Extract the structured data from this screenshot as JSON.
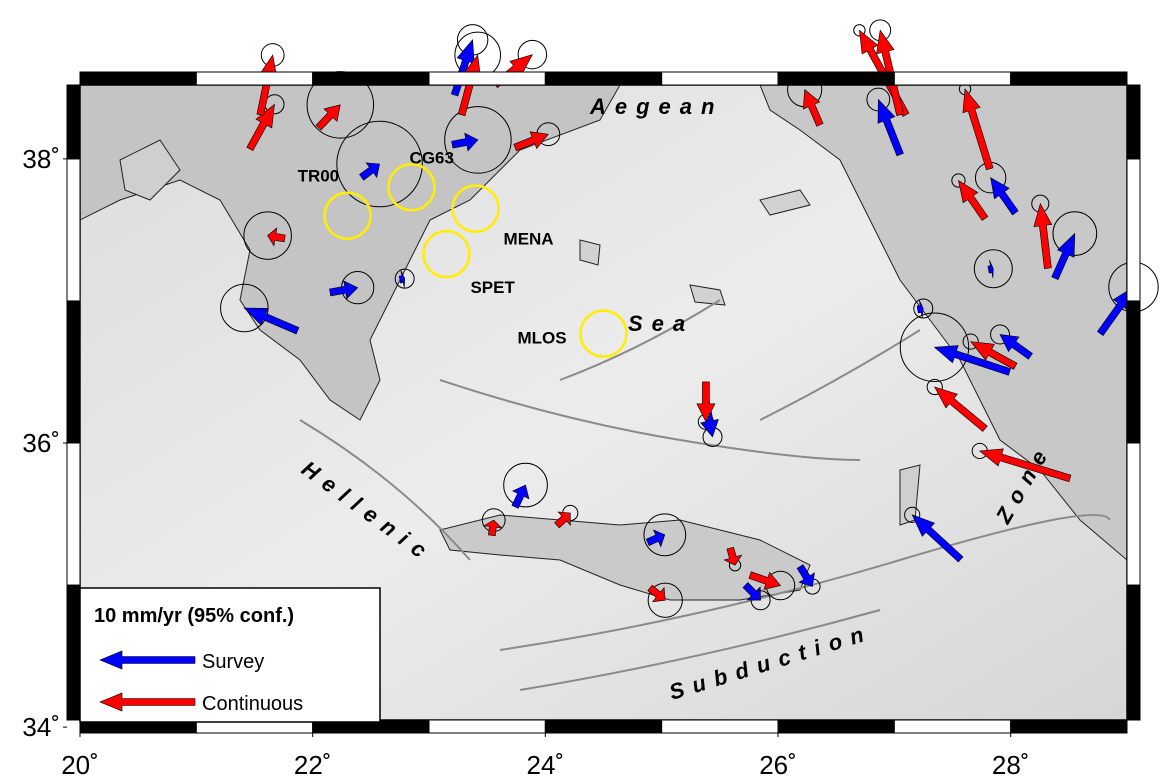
{
  "map": {
    "xlim": [
      20,
      29
    ],
    "ylim": [
      34.05,
      38.52
    ],
    "xticks": [
      {
        "value": 20,
        "label": "20˚"
      },
      {
        "value": 22,
        "label": "22˚"
      },
      {
        "value": 24,
        "label": "24˚"
      },
      {
        "value": 26,
        "label": "26˚"
      },
      {
        "value": 28,
        "label": "28˚"
      }
    ],
    "yticks": [
      {
        "value": 34,
        "label": "34˚"
      },
      {
        "value": 36,
        "label": "36˚"
      },
      {
        "value": 38,
        "label": "38˚"
      }
    ],
    "labels": {
      "aegean": "Aegean",
      "sea": "Sea",
      "hellenic": "Hellenic",
      "subduction": "Subduction",
      "zone": "Zone"
    },
    "stations": [
      {
        "name": "TR00",
        "lon": 22.3,
        "lat": 37.6
      },
      {
        "name": "CG63",
        "lon": 22.85,
        "lat": 37.8
      },
      {
        "name": "MENA",
        "lon": 23.4,
        "lat": 37.65
      },
      {
        "name": "SPET",
        "lon": 23.15,
        "lat": 37.33
      },
      {
        "name": "MLOS",
        "lon": 24.5,
        "lat": 36.77
      }
    ],
    "legend": {
      "title": "10 mm/yr (95% conf.)",
      "scale": 10,
      "entries": [
        {
          "name": "Survey",
          "color": "#0000ff"
        },
        {
          "name": "Continuous",
          "color": "#ff0000"
        }
      ]
    },
    "survey": [
      {
        "lon": 23.22,
        "lat": 38.45,
        "ve": 1.9,
        "vn": 5.8,
        "err": 1.6
      },
      {
        "lon": 23.2,
        "lat": 38.1,
        "ve": 2.7,
        "vn": 0.5,
        "err": 3.5
      },
      {
        "lon": 22.42,
        "lat": 37.87,
        "ve": 1.9,
        "vn": 1.4,
        "err": 4.5
      },
      {
        "lon": 27.05,
        "lat": 38.03,
        "ve": -2.3,
        "vn": 5.8,
        "err": 1.2
      },
      {
        "lon": 28.04,
        "lat": 37.62,
        "ve": -2.6,
        "vn": 3.7,
        "err": 1.6
      },
      {
        "lon": 28.38,
        "lat": 37.16,
        "ve": 2.1,
        "vn": 4.7,
        "err": 2.3
      },
      {
        "lon": 28.77,
        "lat": 36.77,
        "ve": 3.5,
        "vn": 4.9,
        "err": 2.6
      },
      {
        "lon": 21.87,
        "lat": 36.79,
        "ve": -5.6,
        "vn": 2.4,
        "err": 2.5
      },
      {
        "lon": 22.15,
        "lat": 37.06,
        "ve": 2.9,
        "vn": 0.5,
        "err": 1.7
      },
      {
        "lon": 27.99,
        "lat": 36.5,
        "ve": -7.9,
        "vn": 2.6,
        "err": 3.6
      },
      {
        "lon": 28.17,
        "lat": 36.61,
        "ve": -3.2,
        "vn": 2.3,
        "err": 1.0
      },
      {
        "lon": 27.57,
        "lat": 35.18,
        "ve": -5.1,
        "vn": 4.7,
        "err": 0.8
      },
      {
        "lon": 25.38,
        "lat": 36.29,
        "ve": 0.7,
        "vn": -3.7,
        "err": 1.0
      },
      {
        "lon": 24.88,
        "lat": 35.3,
        "ve": 1.8,
        "vn": 0.8,
        "err": 2.2
      },
      {
        "lon": 25.72,
        "lat": 35.0,
        "ve": 1.6,
        "vn": -1.6,
        "err": 1.0
      },
      {
        "lon": 26.19,
        "lat": 35.13,
        "ve": 1.3,
        "vn": -2.1,
        "err": 0.8
      },
      {
        "lon": 23.74,
        "lat": 35.55,
        "ve": 1.1,
        "vn": 2.3,
        "err": 2.3
      },
      {
        "lon": 22.75,
        "lat": 37.15,
        "ve": 0.5,
        "vn": 0.1,
        "err": 1.0
      },
      {
        "lon": 27.81,
        "lat": 37.22,
        "ve": 0.5,
        "vn": 0.1,
        "err": 2.0
      },
      {
        "lon": 27.2,
        "lat": 36.94,
        "ve": 0.6,
        "vn": 0.1,
        "err": 1.0
      }
    ],
    "continuous": [
      {
        "lon": 21.46,
        "lat": 38.07,
        "ve": 2.6,
        "vn": 4.7,
        "err": 1.0
      },
      {
        "lon": 21.55,
        "lat": 38.31,
        "ve": 1.3,
        "vn": 6.3,
        "err": 1.2
      },
      {
        "lon": 22.05,
        "lat": 38.22,
        "ve": 2.3,
        "vn": 2.4,
        "err": 3.5
      },
      {
        "lon": 23.28,
        "lat": 38.31,
        "ve": 1.7,
        "vn": 6.3,
        "err": 2.4
      },
      {
        "lon": 23.57,
        "lat": 38.52,
        "ve": 3.9,
        "vn": 3.2,
        "err": 1.5
      },
      {
        "lon": 23.74,
        "lat": 38.08,
        "ve": 3.5,
        "vn": 1.4,
        "err": 1.2
      },
      {
        "lon": 26.36,
        "lat": 38.24,
        "ve": -1.6,
        "vn": 3.7,
        "err": 1.8
      },
      {
        "lon": 27.1,
        "lat": 38.31,
        "ve": -4.9,
        "vn": 8.9,
        "err": 0.6
      },
      {
        "lon": 27.05,
        "lat": 38.31,
        "ve": -2.1,
        "vn": 8.9,
        "err": 1.1
      },
      {
        "lon": 27.82,
        "lat": 37.93,
        "ve": -2.6,
        "vn": 8.4,
        "err": 0.6
      },
      {
        "lon": 27.78,
        "lat": 37.58,
        "ve": -2.8,
        "vn": 4.0,
        "err": 0.7
      },
      {
        "lon": 28.32,
        "lat": 37.23,
        "ve": -0.8,
        "vn": 6.8,
        "err": 0.9
      },
      {
        "lon": 28.04,
        "lat": 36.54,
        "ve": -4.7,
        "vn": 2.6,
        "err": 0.8
      },
      {
        "lon": 27.78,
        "lat": 36.1,
        "ve": -5.3,
        "vn": 4.4,
        "err": 0.8
      },
      {
        "lon": 28.51,
        "lat": 35.75,
        "ve": -9.5,
        "vn": 2.9,
        "err": 0.8
      },
      {
        "lon": 25.38,
        "lat": 36.43,
        "ve": 0,
        "vn": -4.2,
        "err": 0.8
      },
      {
        "lon": 24.9,
        "lat": 34.98,
        "ve": 1.6,
        "vn": -1.3,
        "err": 1.8
      },
      {
        "lon": 25.76,
        "lat": 35.07,
        "ve": 3.2,
        "vn": -1.1,
        "err": 1.5
      },
      {
        "lon": 25.59,
        "lat": 35.26,
        "ve": 0.5,
        "vn": -1.8,
        "err": 0.6
      },
      {
        "lon": 23.54,
        "lat": 35.35,
        "ve": 0.2,
        "vn": 1.6,
        "err": 1.2
      },
      {
        "lon": 24.1,
        "lat": 35.42,
        "ve": 1.4,
        "vn": 1.3,
        "err": 0.8
      },
      {
        "lon": 21.76,
        "lat": 37.44,
        "ve": -1.8,
        "vn": 0.3,
        "err": 2.5
      }
    ]
  }
}
